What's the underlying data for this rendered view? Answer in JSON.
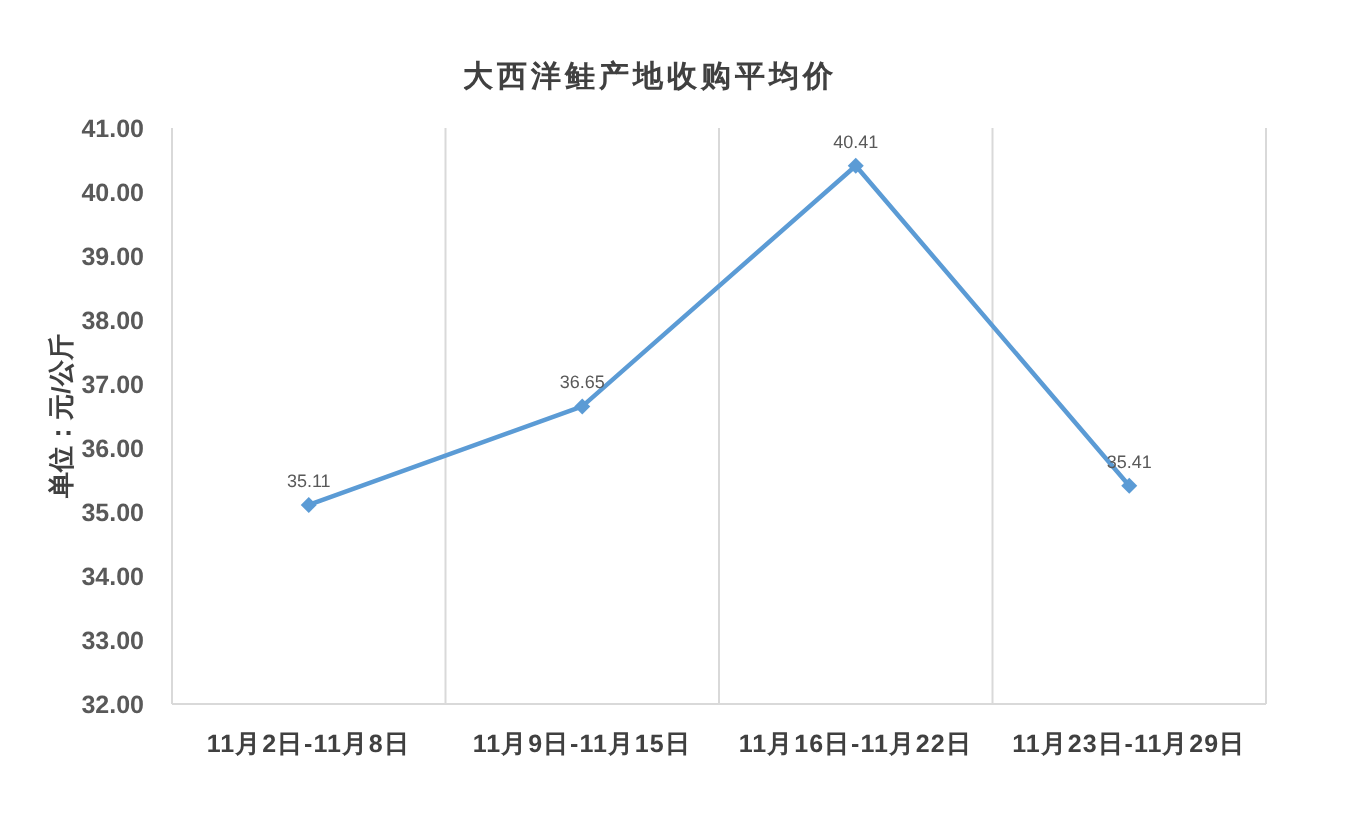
{
  "chart_data": {
    "type": "line",
    "title": "大西洋鲑产地收购平均价",
    "ylabel": "单位：元/公斤",
    "categories": [
      "11月2日-11月8日",
      "11月9日-11月15日",
      "11月16日-11月22日",
      "11月23日-11月29日"
    ],
    "series": [
      {
        "color": "#5b9bd5",
        "values": [
          35.11,
          36.65,
          40.41,
          35.41
        ]
      }
    ],
    "ylim": [
      32,
      41
    ],
    "yticks": [
      {
        "value": 32,
        "label": "32.00"
      },
      {
        "value": 33,
        "label": "33.00"
      },
      {
        "value": 34,
        "label": "34.00"
      },
      {
        "value": 35,
        "label": "35.00"
      },
      {
        "value": 36,
        "label": "36.00"
      },
      {
        "value": 37,
        "label": "37.00"
      },
      {
        "value": 38,
        "label": "38.00"
      },
      {
        "value": 39,
        "label": "39.00"
      },
      {
        "value": 40,
        "label": "40.00"
      },
      {
        "value": 41,
        "label": "41.00"
      }
    ],
    "grid": "x",
    "marker": "diamond",
    "line_style": "solid",
    "data_labels": true
  }
}
